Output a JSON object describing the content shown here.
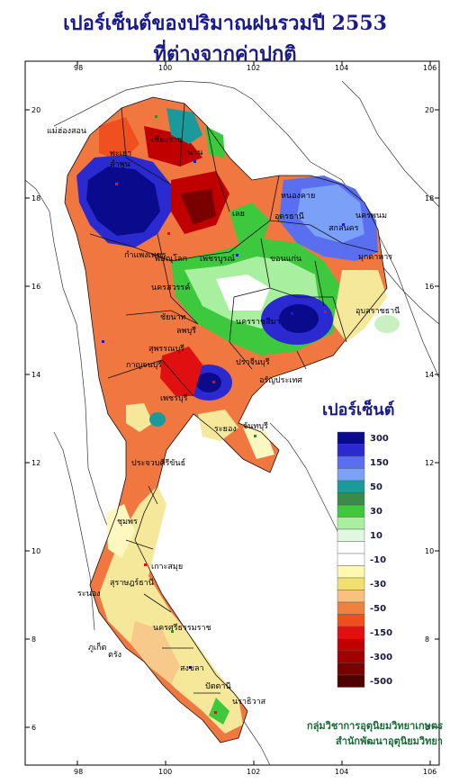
{
  "title": {
    "line1": "เปอร์เซ็นต์ของปริมาณฝนรวมปี 2553",
    "line2": "ที่ต่างจากค่าปกติ"
  },
  "axes": {
    "x_ticks": [
      "98",
      "100",
      "102",
      "104",
      "106"
    ],
    "y_ticks": [
      "20",
      "18",
      "16",
      "14",
      "12",
      "10",
      "8",
      "6"
    ]
  },
  "legend": {
    "title": "เปอร์เซ็นต์",
    "classes": [
      {
        "label": "300",
        "color": "#0a0a8c"
      },
      {
        "label": "",
        "color": "#2a2ad0"
      },
      {
        "label": "150",
        "color": "#5a6ef0"
      },
      {
        "label": "",
        "color": "#7aa0f8"
      },
      {
        "label": "50",
        "color": "#1a9a9a"
      },
      {
        "label": "",
        "color": "#3a8a4a"
      },
      {
        "label": "30",
        "color": "#3ec83e"
      },
      {
        "label": "",
        "color": "#a8f0a0"
      },
      {
        "label": "10",
        "color": "#e0f8e0"
      },
      {
        "label": "",
        "color": "#ffffff"
      },
      {
        "label": "-10",
        "color": "#ffffff"
      },
      {
        "label": "",
        "color": "#fff8b0"
      },
      {
        "label": "-30",
        "color": "#f0e070"
      },
      {
        "label": "",
        "color": "#fac080"
      },
      {
        "label": "-50",
        "color": "#f08040"
      },
      {
        "label": "",
        "color": "#f05020"
      },
      {
        "label": "-150",
        "color": "#e01010"
      },
      {
        "label": "",
        "color": "#c00000"
      },
      {
        "label": "-300",
        "color": "#a00000"
      },
      {
        "label": "",
        "color": "#7a0000"
      },
      {
        "label": "-500",
        "color": "#500000"
      }
    ]
  },
  "places": [
    "เชียงราย",
    "พะเยา",
    "น่าน",
    "แม่ฮ่องสอน",
    "ลำพูน",
    "หนองคาย",
    "อุดรธานี",
    "นครพนม",
    "สกลนคร",
    "มุกดาหาร",
    "เลย",
    "ขอนแก่น",
    "พิษณุโลก",
    "เพชรบูรณ์",
    "กำแพงเพชร",
    "นครสวรรค์",
    "นครราชสีมา",
    "อุบลราชธานี",
    "ชัยนาท",
    "ลพบุรี",
    "สุพรรณบุรี",
    "กาญจนบุรี",
    "ปราจีนบุรี",
    "อรัญประเทศ",
    "เพชรบุรี",
    "ระยอง",
    "จันทบุรี",
    "ประจวบคีรีขันธ์",
    "ชุมพร",
    "ระนอง",
    "สุราษฎร์ธานี",
    "นครศรีธรรมราช",
    "ภูเก็ต",
    "ตรัง",
    "สงขลา",
    "ปัตตานี",
    "นราธิวาส",
    "เกาะสมุย"
  ],
  "credits": {
    "line1": "กลุ่มวิชาการอุตุนิยมวิทยาเกษตร",
    "line2": "สำนักพัฒนาอุตุนิยมวิทยา"
  }
}
